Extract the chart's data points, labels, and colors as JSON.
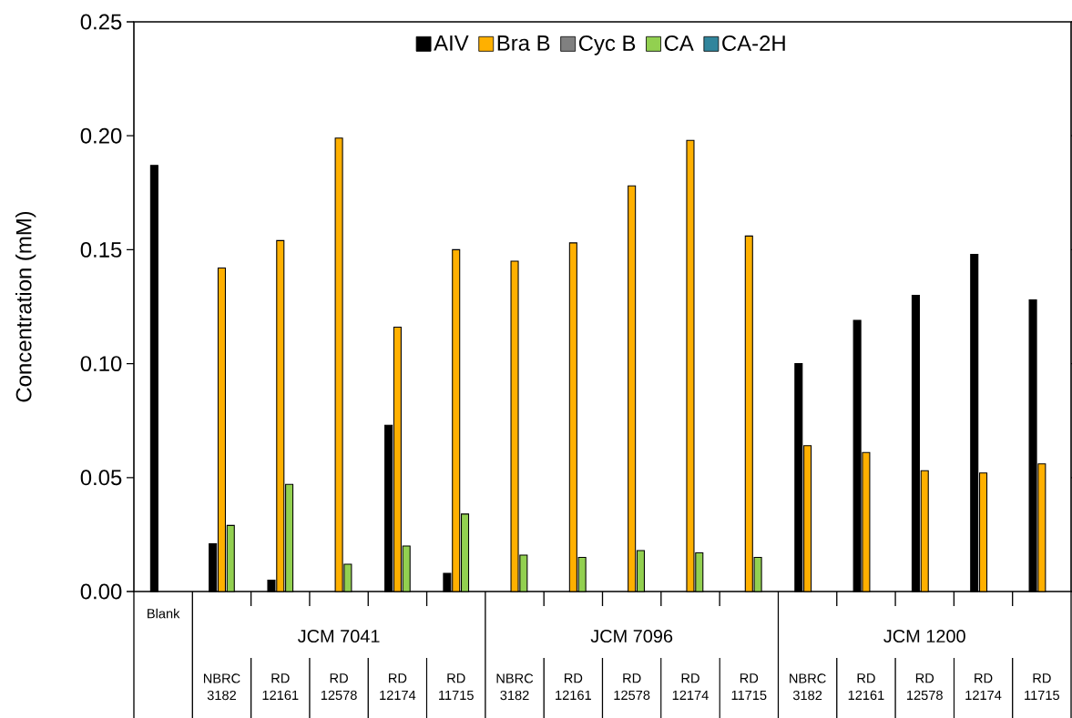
{
  "chart_data": {
    "type": "bar",
    "ylabel": "Concentration (mM)",
    "categories": [
      "Blank",
      "NBRC 3182",
      "RD 12161",
      "RD 12578",
      "RD 12174",
      "RD 11715",
      "NBRC 3182",
      "RD 12161",
      "RD 12578",
      "RD 12174",
      "RD 11715",
      "NBRC 3182",
      "RD 12161",
      "RD 12578",
      "RD 12174",
      "RD 11715"
    ],
    "annotations": [
      "JCM 7041",
      "JCM 7096",
      "JCM 1200"
    ],
    "series": [
      {
        "name": "AIV",
        "color": "#000000",
        "values": [
          0.187,
          0.021,
          0.005,
          null,
          0.073,
          0.008,
          null,
          null,
          null,
          null,
          null,
          0.1,
          0.119,
          0.13,
          0.148,
          0.128
        ]
      },
      {
        "name": "Bra B",
        "color": "#ffb000",
        "values": [
          null,
          0.142,
          0.154,
          0.199,
          0.116,
          0.15,
          0.145,
          0.153,
          0.178,
          0.198,
          0.156,
          0.064,
          0.061,
          0.053,
          0.052,
          0.056
        ]
      },
      {
        "name": "Cyc B",
        "color": "#808080",
        "values": [
          null,
          null,
          null,
          null,
          null,
          null,
          null,
          null,
          null,
          null,
          null,
          null,
          null,
          null,
          null,
          null
        ]
      },
      {
        "name": "CA",
        "color": "#92d050",
        "values": [
          null,
          0.029,
          0.047,
          0.012,
          0.02,
          0.034,
          0.016,
          0.015,
          0.018,
          0.017,
          0.015,
          null,
          null,
          null,
          null,
          null
        ]
      },
      {
        "name": "CA-2H",
        "color": "#31859c",
        "values": [
          null,
          null,
          null,
          null,
          null,
          null,
          null,
          null,
          null,
          null,
          null,
          null,
          null,
          null,
          null,
          null
        ]
      }
    ],
    "ylim": [
      0,
      0.25
    ],
    "yticks": [
      {
        "value": 0,
        "label": "0.00"
      },
      {
        "value": 0.05,
        "label": "0.05"
      },
      {
        "value": 0.1,
        "label": "0.10"
      },
      {
        "value": 0.15,
        "label": "0.15"
      },
      {
        "value": 0.2,
        "label": "0.20"
      },
      {
        "value": 0.25,
        "label": "0.25"
      }
    ],
    "legend": "top"
  }
}
